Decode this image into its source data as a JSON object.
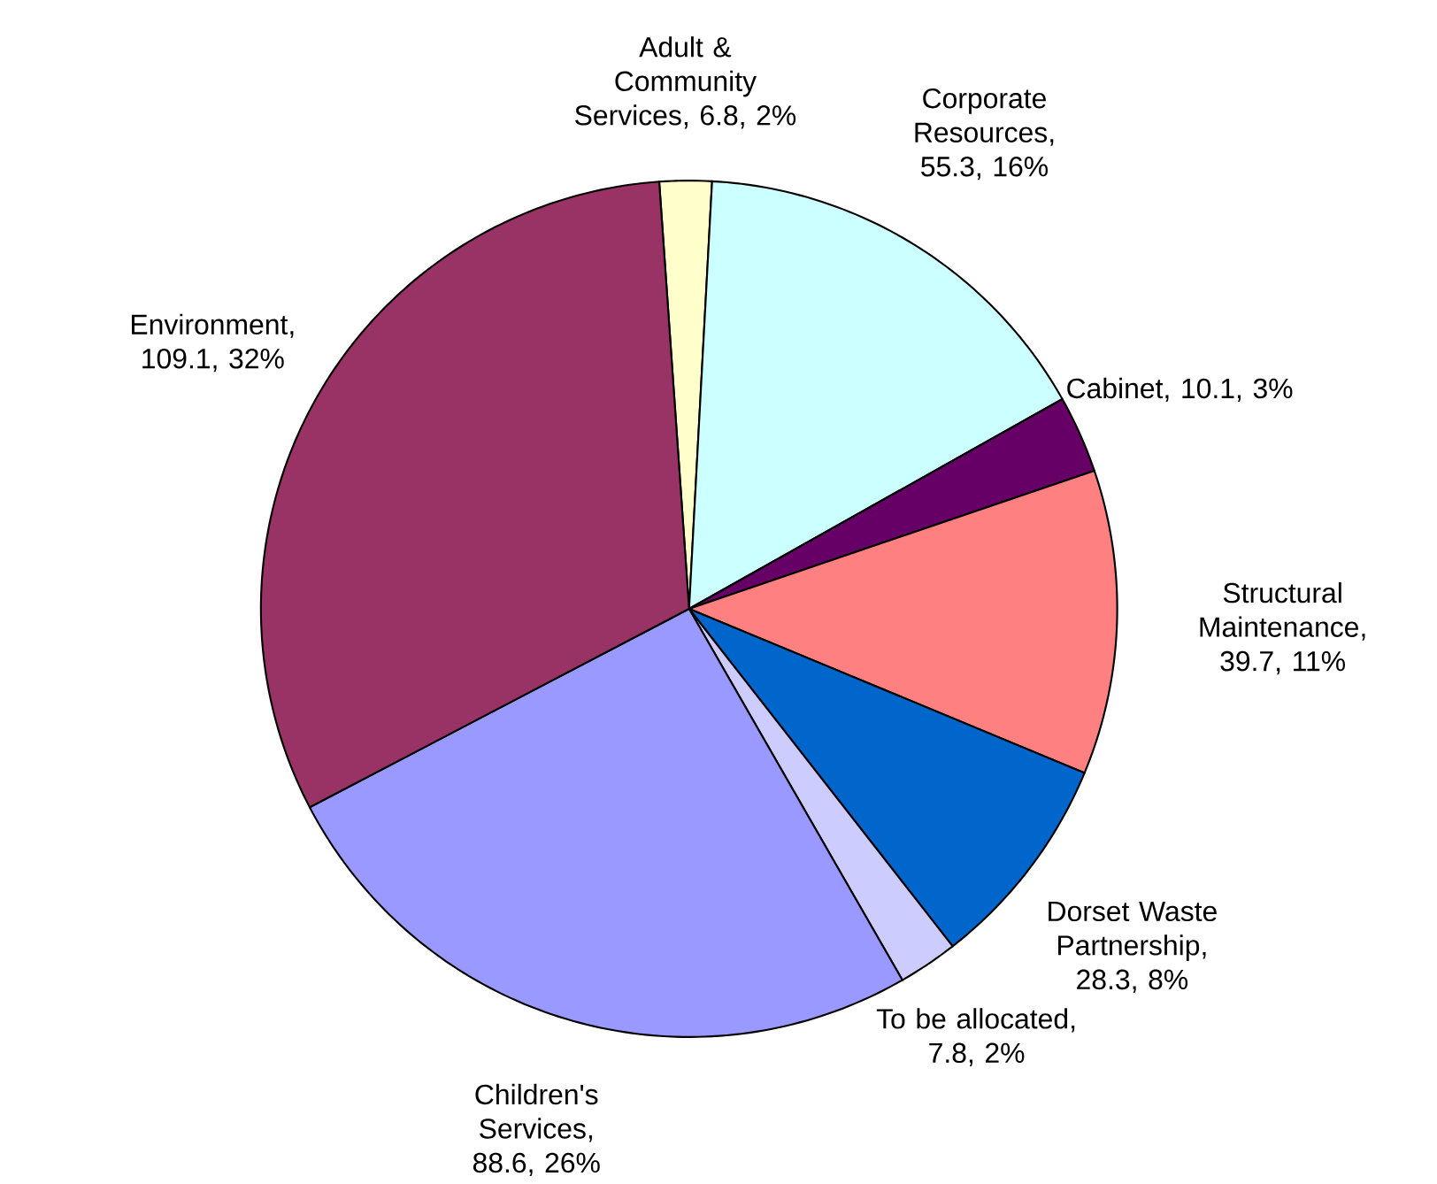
{
  "chart_data": {
    "type": "pie",
    "categories": [
      "Adult & Community Services",
      "Corporate Resources",
      "Cabinet",
      "Structural Maintenance",
      "Dorset Waste Partnership",
      "To be allocated",
      "Children's Services",
      "Environment"
    ],
    "values": [
      6.8,
      55.3,
      10.1,
      39.7,
      28.3,
      7.8,
      88.6,
      109.1
    ],
    "value_labels": [
      ", 6.8, 2%",
      ", 55.3, 16%",
      ", 10.1, 3%",
      ", 39.7, 11%",
      ", 28.3, 8%",
      ", 7.8, 2%",
      ", 88.6, 26%",
      ", 109.1, 32%"
    ],
    "colors": [
      "#ffffcc",
      "#ccffff",
      "#660066",
      "#ff8080",
      "#0066cc",
      "#ccccff",
      "#9999ff",
      "#993366"
    ]
  }
}
